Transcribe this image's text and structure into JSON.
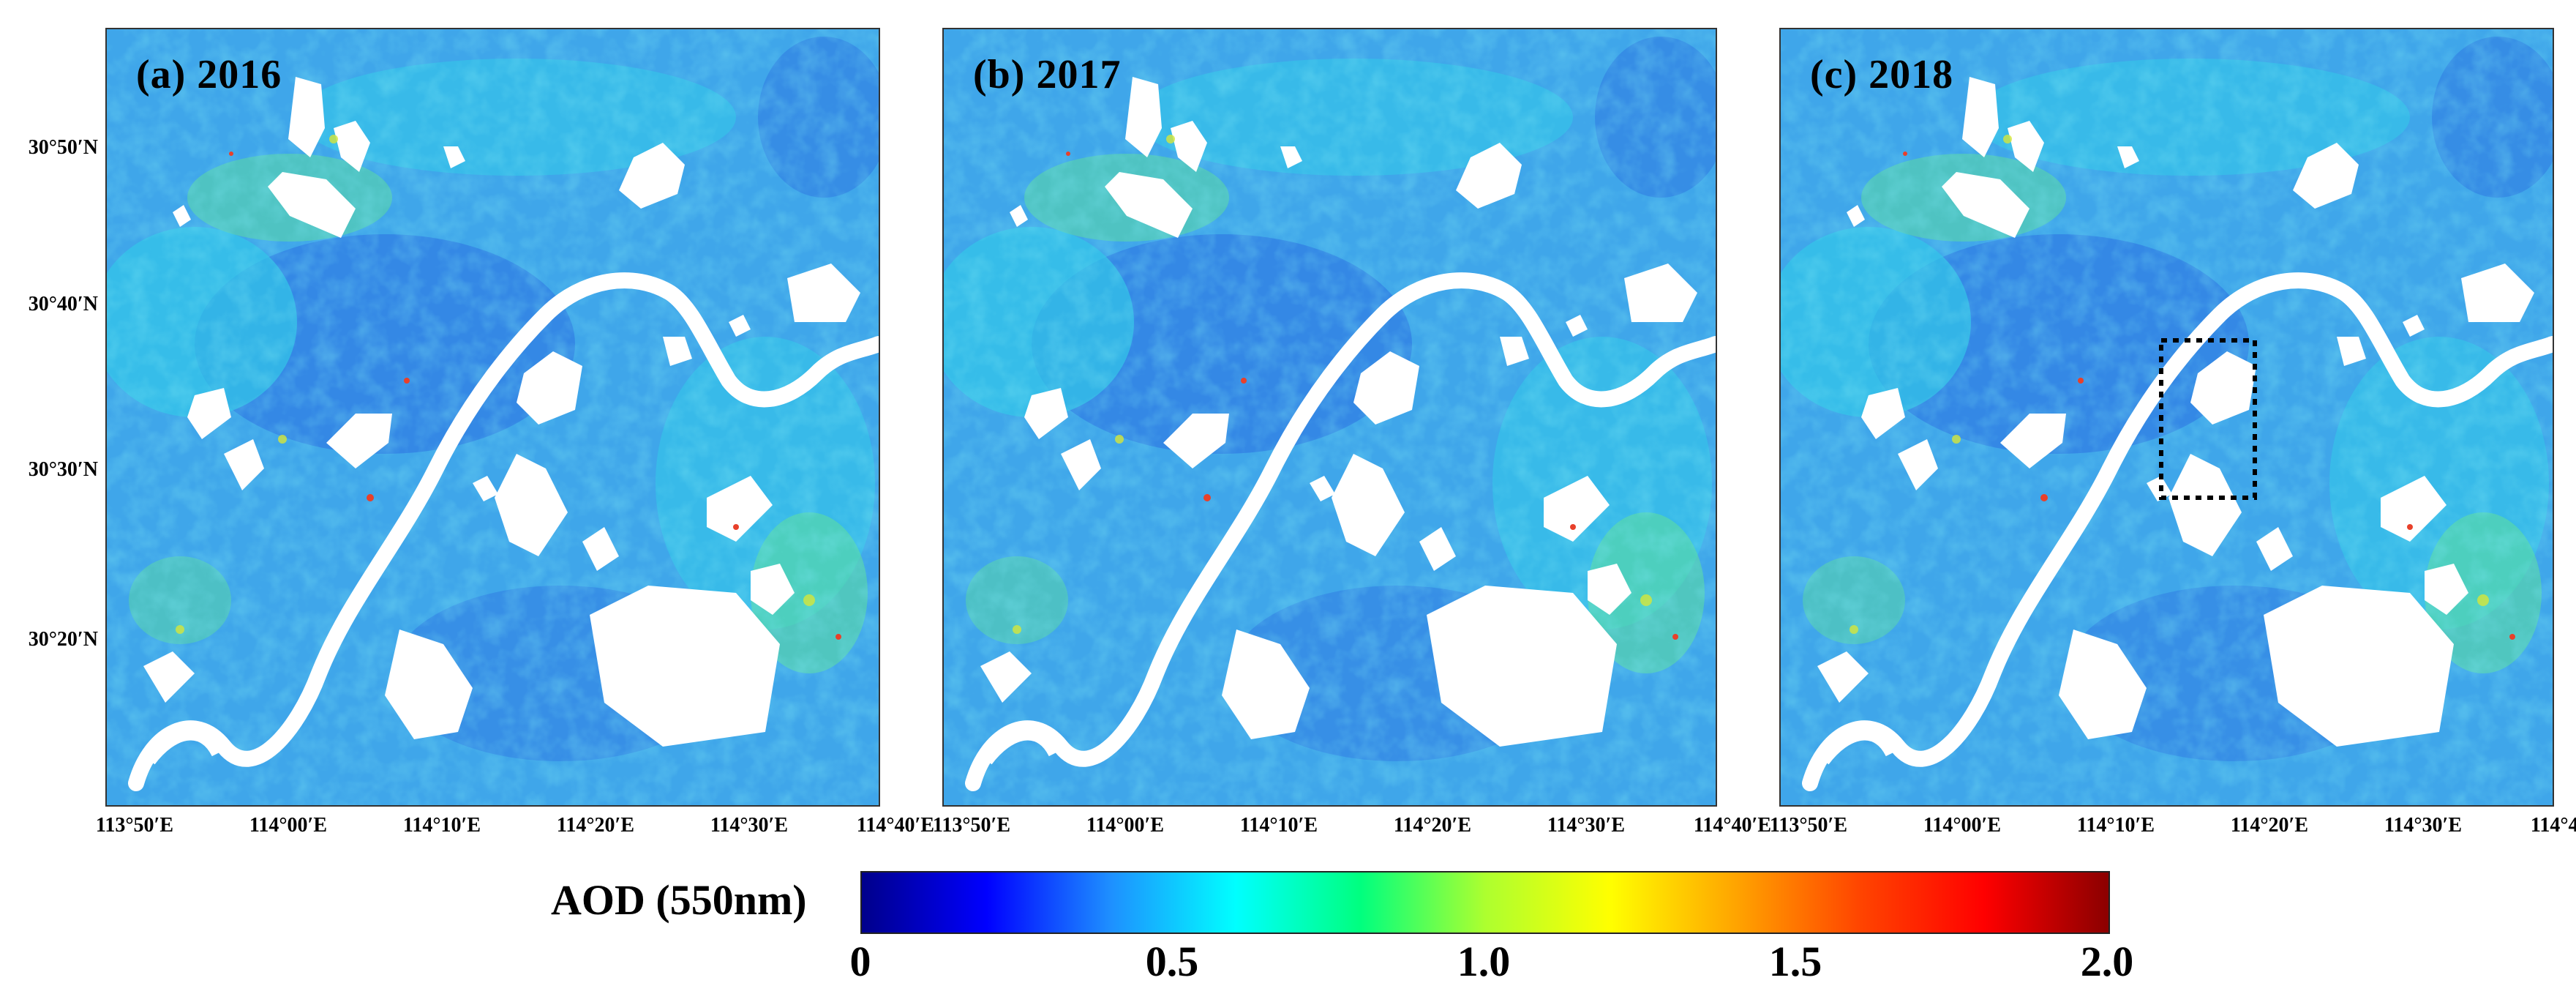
{
  "panels": [
    {
      "label": "(a) 2016",
      "year": 2016,
      "highlight_box": false
    },
    {
      "label": "(b) 2017",
      "year": 2017,
      "highlight_box": false
    },
    {
      "label": "(c) 2018",
      "year": 2018,
      "highlight_box": true
    }
  ],
  "lat_labels": [
    "30°50′N",
    "30°40′N",
    "30°30′N",
    "30°20′N"
  ],
  "lon_labels": [
    "113°50′E",
    "114°00′E",
    "114°10′E",
    "114°20′E",
    "114°30′E",
    "114°40′E"
  ],
  "colorbar": {
    "title": "AOD (550nm)",
    "ticks": [
      "0",
      "0.5",
      "1.0",
      "1.5",
      "2.0"
    ],
    "range": [
      0,
      2.0
    ],
    "colors": [
      "#00008b",
      "#0000ff",
      "#1e90ff",
      "#00ffff",
      "#00ff7f",
      "#adff2f",
      "#ffff00",
      "#ffa500",
      "#ff4500",
      "#ff0000",
      "#8b0000"
    ]
  },
  "map_colors": {
    "base": "#3fa6ea",
    "low": "#2c6fe0",
    "mid": "#33c8e8",
    "high": "#5fe09a",
    "peak": "#d6e63a",
    "hot": "#e8402a",
    "nodata": "#ffffff"
  }
}
